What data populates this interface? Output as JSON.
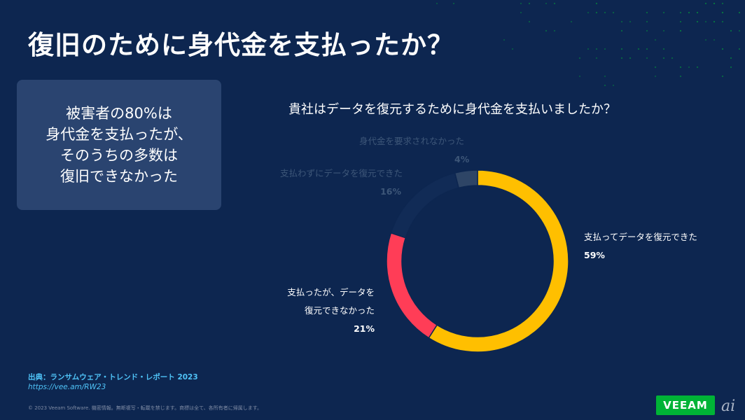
{
  "slide": {
    "title": "復旧のために身代金を支払ったか？",
    "callout": {
      "lines": [
        "被害者の80%は",
        "身代金を支払ったが、",
        "そのうちの多数は",
        "復旧できなかった"
      ]
    },
    "source": {
      "line1": "出典：ランサムウェア・トレンド・レポート 2023",
      "line2": "https://vee.am/RW23"
    },
    "copyright": "© 2023 Veeam Software. 機密情報。無断複写・転載を禁じます。商標は全て、各所有者に帰属します。",
    "logo_text": "VEEAM",
    "watermark_text": "ai"
  },
  "chart_data": {
    "type": "pie",
    "donut": true,
    "title": "貴社はデータを復元するために身代金を支払いましたか？",
    "start_angle_deg": 0,
    "direction": "clockwise",
    "slices": [
      {
        "label": "支払ってデータを復元できた",
        "label_lines": [
          "支払ってデータを復元できた"
        ],
        "value": 59,
        "value_label": "59%",
        "color": "#ffbf00",
        "dimmed": false
      },
      {
        "label": "支払ったが、データを復元できなかった",
        "label_lines": [
          "支払ったが、データを",
          "復元できなかった"
        ],
        "value": 21,
        "value_label": "21%",
        "color": "#ff3d57",
        "dimmed": false
      },
      {
        "label": "支払わずにデータを復元できた",
        "label_lines": [
          "支払わずにデータを復元できた"
        ],
        "value": 16,
        "value_label": "16%",
        "color": "#112b56",
        "dimmed": true
      },
      {
        "label": "身代金を要求されなかった",
        "label_lines": [
          "身代金を要求されなかった"
        ],
        "value": 4,
        "value_label": "4%",
        "color": "#2e4566",
        "dimmed": true
      }
    ],
    "colors": {
      "background": "#0d2650",
      "text": "#ffffff",
      "dim_text": "#3d5678",
      "accent_green": "#00b336",
      "source_blue": "#4fc3f7"
    }
  }
}
